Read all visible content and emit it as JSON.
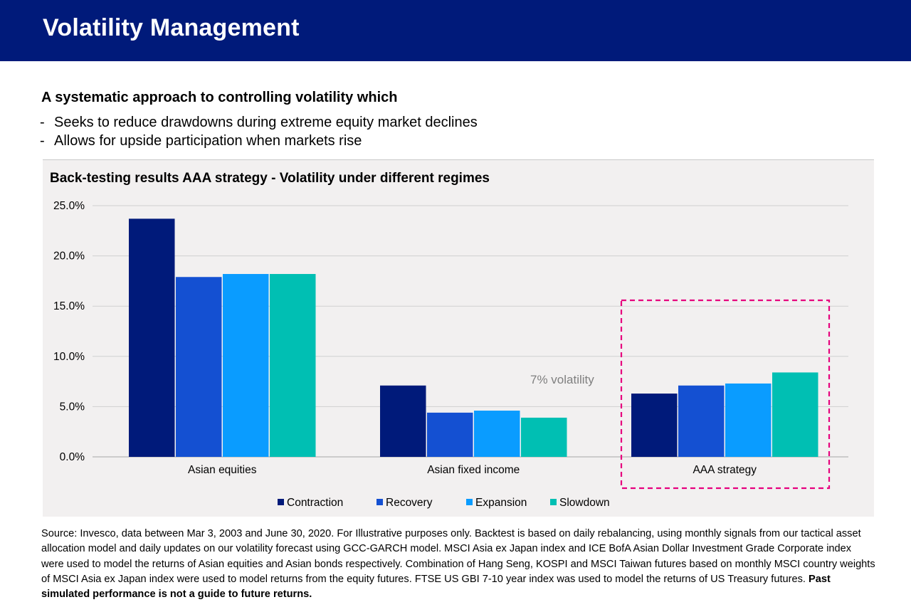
{
  "header": {
    "title": "Volatility Management"
  },
  "intro": {
    "subtitle": "A systematic approach to controlling volatility which",
    "bullets": [
      "Seeks to reduce drawdowns during extreme equity market declines",
      "Allows for upside participation when markets rise"
    ]
  },
  "chart_data": {
    "type": "bar",
    "title": "Back-testing results AAA strategy - Volatility under different regimes",
    "categories": [
      "Asian equities",
      "Asian fixed income",
      "AAA strategy"
    ],
    "series": [
      {
        "name": "Contraction",
        "color": "#001a7a",
        "values": [
          23.7,
          7.1,
          6.3
        ]
      },
      {
        "name": "Recovery",
        "color": "#1450d2",
        "values": [
          17.9,
          4.4,
          7.1
        ]
      },
      {
        "name": "Expansion",
        "color": "#0a9cff",
        "values": [
          18.2,
          4.6,
          7.3
        ]
      },
      {
        "name": "Slowdown",
        "color": "#00bfb3",
        "values": [
          18.2,
          3.9,
          8.4
        ]
      }
    ],
    "ylim": [
      0,
      25
    ],
    "yticks": [
      "0.0%",
      "5.0%",
      "10.0%",
      "15.0%",
      "20.0%",
      "25.0%"
    ],
    "grid": true,
    "legend": "bottom",
    "annotation": "7% volatility",
    "highlight_category": "AAA strategy",
    "highlight_color": "#e6007e"
  },
  "footnote": {
    "text": "Source: Invesco, data between Mar 3, 2003 and June 30, 2020. For Illustrative purposes only. Backtest is based on daily rebalancing, using monthly signals from our tactical asset allocation model and daily updates on our volatility forecast using GCC-GARCH model. MSCI Asia ex Japan index and ICE BofA Asian Dollar Investment Grade Corporate index were used to model the returns of Asian equities and Asian bonds respectively. Combination of Hang Seng, KOSPI and MSCI Taiwan futures based on monthly MSCI country weights of MSCI Asia ex Japan index were used to model returns from the equity futures. FTSE US GBI 7-10 year index was used to model the returns of US Treasury futures. ",
    "bold": "Past simulated performance is not a guide to future returns."
  }
}
